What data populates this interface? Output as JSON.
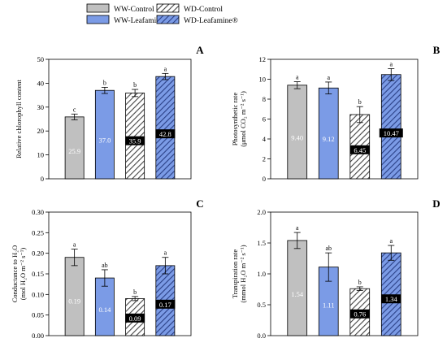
{
  "legend": {
    "entries": [
      {
        "label": "WW-Control",
        "fill": "#c0c0c0",
        "hatch": false
      },
      {
        "label": "WW-Leafamine®",
        "fill": "#7b9be6",
        "hatch": false
      },
      {
        "label": "WD-Control",
        "fill": "#c0c0c0",
        "hatch": true
      },
      {
        "label": "WD-Leafamine®",
        "fill": "#7b9be6",
        "hatch": true
      }
    ]
  },
  "colors": {
    "control": "#c0c0c0",
    "leafamine": "#7b9be6",
    "label_box": "#000000",
    "label_text_light": "#ffffff"
  },
  "chart_data": [
    {
      "type": "bar",
      "panel": "A",
      "categories": [
        "WW-Control",
        "WW-Leafamine®",
        "WD-Control",
        "WD-Leafamine®"
      ],
      "values": [
        25.9,
        37.0,
        35.9,
        42.8
      ],
      "errors": [
        1.2,
        1.3,
        1.5,
        1.3
      ],
      "letters": [
        "c",
        "b",
        "b",
        "a"
      ],
      "data_labels": [
        "25.9",
        "37.0",
        "35.9",
        "42.8"
      ],
      "ylabel_lines": [
        "Relative chlorophyll content"
      ],
      "ylim": [
        0,
        50
      ],
      "yticks": [
        "0",
        "10",
        "20",
        "30",
        "40",
        "50"
      ]
    },
    {
      "type": "bar",
      "panel": "B",
      "categories": [
        "WW-Control",
        "WW-Leafamine®",
        "WD-Control",
        "WD-Leafamine®"
      ],
      "values": [
        9.4,
        9.12,
        6.45,
        10.47
      ],
      "errors": [
        0.35,
        0.6,
        0.8,
        0.6
      ],
      "letters": [
        "a",
        "a",
        "b",
        "a"
      ],
      "data_labels": [
        "9.40",
        "9.12",
        "6.45",
        "10.47"
      ],
      "ylabel_lines": [
        "Photosynthetic rate",
        "(μmol CO₂ m⁻² s⁻¹)"
      ],
      "ylim": [
        0,
        12
      ],
      "yticks": [
        "0",
        "2",
        "4",
        "6",
        "8",
        "10",
        "12"
      ]
    },
    {
      "type": "bar",
      "panel": "C",
      "categories": [
        "WW-Control",
        "WW-Leafamine®",
        "WD-Control",
        "WD-Leafamine®"
      ],
      "values": [
        0.19,
        0.14,
        0.09,
        0.17
      ],
      "errors": [
        0.02,
        0.02,
        0.005,
        0.02
      ],
      "letters": [
        "a",
        "ab",
        "b",
        "a"
      ],
      "data_labels": [
        "0.19",
        "0.14",
        "0.09",
        "0.17"
      ],
      "ylabel_lines": [
        "Conductance to H₂O",
        "(mol H₂O m⁻² s⁻¹)"
      ],
      "ylim": [
        0,
        0.3
      ],
      "yticks": [
        "0.00",
        "0.05",
        "0.10",
        "0.15",
        "0.20",
        "0.25",
        "0.30"
      ]
    },
    {
      "type": "bar",
      "panel": "D",
      "categories": [
        "WW-Control",
        "WW-Leafamine®",
        "WD-Control",
        "WD-Leafamine®"
      ],
      "values": [
        1.54,
        1.11,
        0.76,
        1.34
      ],
      "errors": [
        0.13,
        0.23,
        0.03,
        0.12
      ],
      "letters": [
        "a",
        "ab",
        "b",
        "a"
      ],
      "data_labels": [
        "1.54",
        "1.11",
        "0.76",
        "1.34"
      ],
      "ylabel_lines": [
        "Transpiration rate",
        "(mmol H₂O m⁻² s⁻¹)"
      ],
      "ylim": [
        0,
        2.0
      ],
      "yticks": [
        "0.0",
        "0.5",
        "1.0",
        "1.5",
        "2.0"
      ]
    }
  ]
}
